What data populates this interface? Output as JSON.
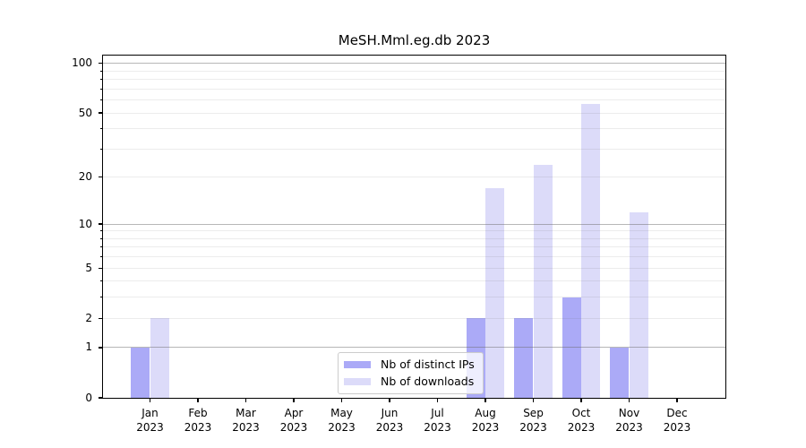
{
  "chart_data": {
    "type": "bar",
    "title": "MeSH.Mml.eg.db 2023",
    "categories": [
      "Jan",
      "Feb",
      "Mar",
      "Apr",
      "May",
      "Jun",
      "Jul",
      "Aug",
      "Sep",
      "Oct",
      "Nov",
      "Dec"
    ],
    "year": "2023",
    "series": [
      {
        "key": "distinct-ips",
        "name": "Nb of distinct IPs",
        "color": "#abaaf7",
        "values": [
          1,
          0,
          0,
          0,
          0,
          0,
          0,
          2,
          2,
          3,
          1,
          0
        ]
      },
      {
        "key": "downloads",
        "name": "Nb of downloads",
        "color": "#dcdbf9",
        "values": [
          2,
          0,
          0,
          0,
          0,
          0,
          0,
          17,
          24,
          57,
          12,
          0
        ]
      }
    ],
    "yaxis": {
      "scale": "log1p",
      "labeled_ticks": [
        0,
        1,
        2,
        5,
        10,
        20,
        50,
        100
      ],
      "decade_gridlines": [
        1,
        10,
        100
      ],
      "minor_gridlines": [
        2,
        3,
        4,
        5,
        6,
        7,
        8,
        9,
        20,
        30,
        40,
        50,
        60,
        70,
        80,
        90
      ],
      "unlabeled_minor_ticks": [
        3,
        4,
        6,
        7,
        8,
        9,
        30,
        40,
        60,
        70,
        80,
        90
      ],
      "range": [
        0,
        113
      ]
    },
    "xlabel": "",
    "ylabel": "",
    "grid": "horizontal",
    "legend": {
      "position": "lower-center-inside"
    }
  }
}
